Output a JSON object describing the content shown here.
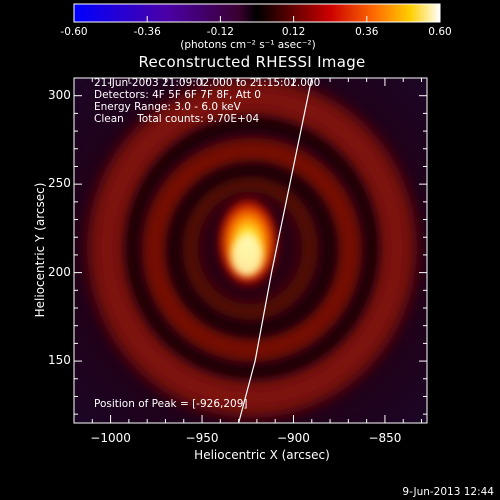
{
  "colorbar": {
    "ticks": [
      "-0.60",
      "-0.36",
      "-0.12",
      "0.12",
      "0.36",
      "0.60"
    ],
    "unit_label": "(photons cm⁻² s⁻¹ asec⁻²)"
  },
  "info": {
    "time_range": "21-Jun-2003 21:09:02.000 to 21:15:02.000",
    "detectors": "Detectors: 4F 5F 6F 7F 8F, Att 0",
    "energy": "Energy Range: 3.0 - 6.0 keV",
    "method": "Clean    Total counts: 9.70E+04",
    "peak": "Position of Peak = [-926,209]"
  },
  "footer": {
    "timestamp": "9-Jun-2013 12:44"
  },
  "chart_data": {
    "type": "heatmap",
    "title": "Reconstructed RHESSI Image",
    "xlabel": "Heliocentric X (arcsec)",
    "ylabel": "Heliocentric Y (arcsec)",
    "xlim": [
      -1020,
      -827
    ],
    "ylim": [
      115,
      310
    ],
    "xticks": [
      -1000,
      -950,
      -900,
      -850
    ],
    "yticks": [
      150,
      200,
      250,
      300
    ],
    "colorbar_range": [
      -0.6,
      0.6
    ],
    "peak_position": [
      -926,
      209
    ],
    "limb_curve": [
      [
        -930,
        115
      ],
      [
        -921,
        150
      ],
      [
        -912,
        200
      ],
      [
        -902,
        250
      ],
      [
        -890,
        310
      ]
    ]
  }
}
